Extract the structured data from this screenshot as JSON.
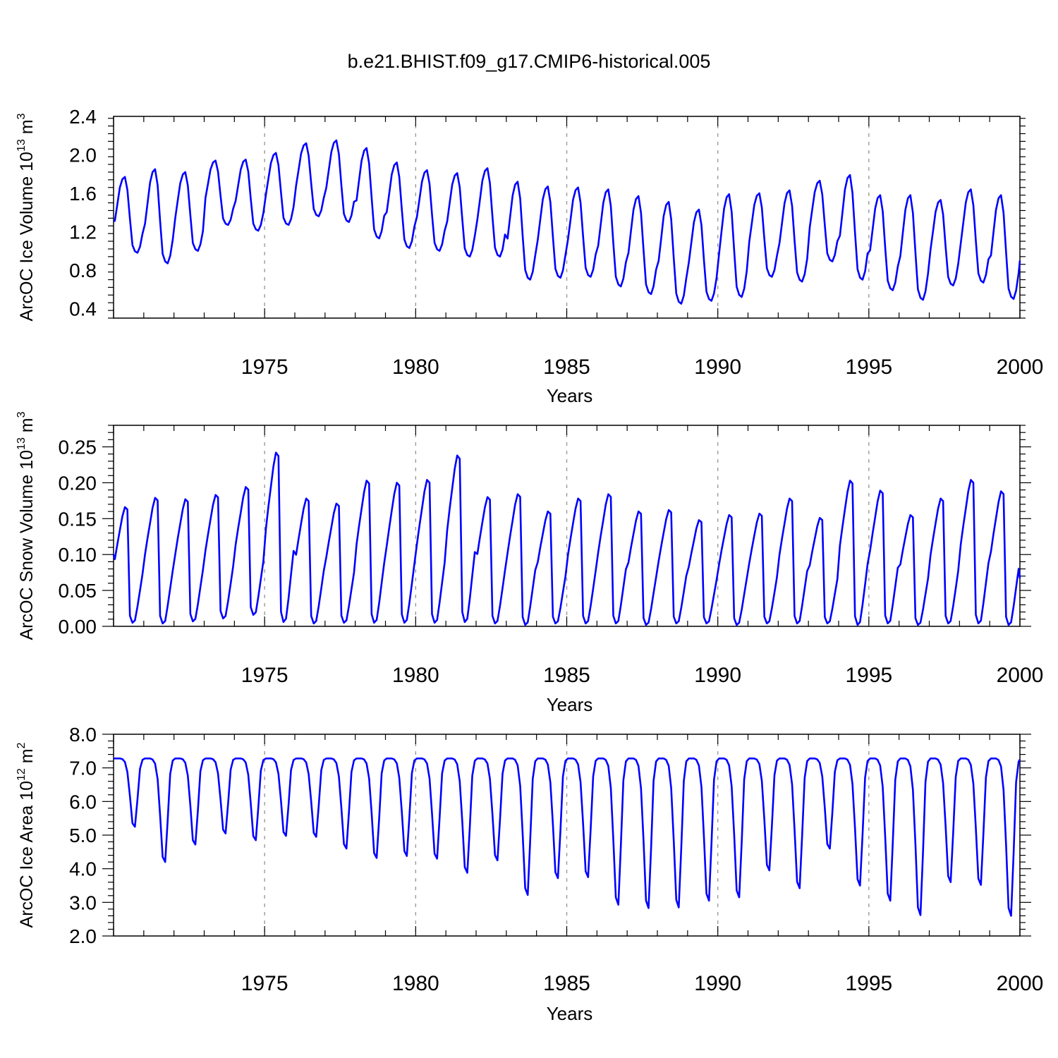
{
  "title": "b.e21.BHIST.f09_g17.CMIP6-historical.005",
  "line_color": "#0000ff",
  "chart_data": [
    {
      "type": "line",
      "ylabel": "ArcOC Ice Volume 10",
      "ylabel_exp": "13",
      "ylabel_unit": "m",
      "ylabel_unit_exp": "3",
      "xlabel": "Years",
      "xlim": [
        1970.0,
        2000.0
      ],
      "ylim": [
        0.3,
        2.4
      ],
      "yticks": [
        "0.4",
        "0.8",
        "1.2",
        "1.6",
        "2.0",
        "2.4"
      ],
      "xticks": [
        "1975",
        "1980",
        "1985",
        "1990",
        "1995",
        "2000"
      ],
      "xgrid": [
        1975,
        1980,
        1985,
        1990,
        1995
      ],
      "annual": [
        {
          "min": 0.98,
          "max": 1.77
        },
        {
          "min": 0.87,
          "max": 1.85
        },
        {
          "min": 1.0,
          "max": 1.82
        },
        {
          "min": 1.27,
          "max": 1.94
        },
        {
          "min": 1.21,
          "max": 1.95
        },
        {
          "min": 1.27,
          "max": 2.02
        },
        {
          "min": 1.36,
          "max": 2.12
        },
        {
          "min": 1.3,
          "max": 2.15
        },
        {
          "min": 1.13,
          "max": 2.07
        },
        {
          "min": 1.03,
          "max": 1.92
        },
        {
          "min": 1.0,
          "max": 1.84
        },
        {
          "min": 0.94,
          "max": 1.81
        },
        {
          "min": 0.94,
          "max": 1.86
        },
        {
          "min": 0.7,
          "max": 1.72
        },
        {
          "min": 0.72,
          "max": 1.67
        },
        {
          "min": 0.73,
          "max": 1.66
        },
        {
          "min": 0.63,
          "max": 1.64
        },
        {
          "min": 0.55,
          "max": 1.57
        },
        {
          "min": 0.45,
          "max": 1.51
        },
        {
          "min": 0.48,
          "max": 1.43
        },
        {
          "min": 0.52,
          "max": 1.59
        },
        {
          "min": 0.73,
          "max": 1.6
        },
        {
          "min": 0.68,
          "max": 1.63
        },
        {
          "min": 0.89,
          "max": 1.73
        },
        {
          "min": 0.7,
          "max": 1.79
        },
        {
          "min": 0.59,
          "max": 1.58
        },
        {
          "min": 0.49,
          "max": 1.58
        },
        {
          "min": 0.64,
          "max": 1.53
        },
        {
          "min": 0.67,
          "max": 1.64
        },
        {
          "min": 0.5,
          "max": 1.58
        }
      ],
      "start_value": 1.31,
      "end_value": 0.9
    },
    {
      "type": "line",
      "ylabel": "ArcOC Snow Volume 10",
      "ylabel_exp": "13",
      "ylabel_unit": "m",
      "ylabel_unit_exp": "3",
      "xlabel": "Years",
      "xlim": [
        1970.0,
        2000.0
      ],
      "ylim": [
        0.0,
        0.28
      ],
      "yticks": [
        "0.00",
        "0.05",
        "0.10",
        "0.15",
        "0.20",
        "0.25"
      ],
      "xticks": [
        "1975",
        "1980",
        "1985",
        "1990",
        "1995",
        "2000"
      ],
      "xgrid": [
        1975,
        1980,
        1985,
        1990,
        1995
      ],
      "annual": [
        {
          "min": 0.005,
          "max": 0.166
        },
        {
          "min": 0.004,
          "max": 0.179
        },
        {
          "min": 0.007,
          "max": 0.177
        },
        {
          "min": 0.011,
          "max": 0.183
        },
        {
          "min": 0.016,
          "max": 0.194
        },
        {
          "min": 0.006,
          "max": 0.242
        },
        {
          "min": 0.004,
          "max": 0.178
        },
        {
          "min": 0.005,
          "max": 0.171
        },
        {
          "min": 0.005,
          "max": 0.203
        },
        {
          "min": 0.005,
          "max": 0.2
        },
        {
          "min": 0.005,
          "max": 0.204
        },
        {
          "min": 0.006,
          "max": 0.238
        },
        {
          "min": 0.004,
          "max": 0.18
        },
        {
          "min": 0.002,
          "max": 0.184
        },
        {
          "min": 0.004,
          "max": 0.16
        },
        {
          "min": 0.004,
          "max": 0.178
        },
        {
          "min": 0.004,
          "max": 0.184
        },
        {
          "min": 0.002,
          "max": 0.16
        },
        {
          "min": 0.004,
          "max": 0.162
        },
        {
          "min": 0.004,
          "max": 0.148
        },
        {
          "min": 0.002,
          "max": 0.155
        },
        {
          "min": 0.004,
          "max": 0.157
        },
        {
          "min": 0.004,
          "max": 0.178
        },
        {
          "min": 0.004,
          "max": 0.151
        },
        {
          "min": 0.002,
          "max": 0.203
        },
        {
          "min": 0.004,
          "max": 0.189
        },
        {
          "min": 0.002,
          "max": 0.155
        },
        {
          "min": 0.004,
          "max": 0.178
        },
        {
          "min": 0.004,
          "max": 0.204
        },
        {
          "min": 0.002,
          "max": 0.188
        }
      ],
      "start_value": 0.1,
      "end_value": 0.067
    },
    {
      "type": "line",
      "ylabel": "ArcOC Ice Area 10",
      "ylabel_exp": "12",
      "ylabel_unit": "m",
      "ylabel_unit_exp": "2",
      "xlabel": "Years",
      "xlim": [
        1970.0,
        2000.0
      ],
      "ylim": [
        2.0,
        8.0
      ],
      "yticks": [
        "2.0",
        "3.0",
        "4.0",
        "5.0",
        "6.0",
        "7.0",
        "8.0"
      ],
      "xticks": [
        "1975",
        "1980",
        "1985",
        "1990",
        "1995",
        "2000"
      ],
      "xgrid": [
        1975,
        1980,
        1985,
        1990,
        1995
      ],
      "annual": [
        {
          "min": 5.25,
          "max": 7.28
        },
        {
          "min": 4.2,
          "max": 7.28
        },
        {
          "min": 4.72,
          "max": 7.28
        },
        {
          "min": 5.05,
          "max": 7.28
        },
        {
          "min": 4.85,
          "max": 7.28
        },
        {
          "min": 4.98,
          "max": 7.28
        },
        {
          "min": 4.95,
          "max": 7.28
        },
        {
          "min": 4.6,
          "max": 7.28
        },
        {
          "min": 4.32,
          "max": 7.28
        },
        {
          "min": 4.38,
          "max": 7.28
        },
        {
          "min": 4.3,
          "max": 7.28
        },
        {
          "min": 3.88,
          "max": 7.28
        },
        {
          "min": 4.25,
          "max": 7.28
        },
        {
          "min": 3.22,
          "max": 7.28
        },
        {
          "min": 3.72,
          "max": 7.28
        },
        {
          "min": 3.75,
          "max": 7.28
        },
        {
          "min": 2.93,
          "max": 7.28
        },
        {
          "min": 2.83,
          "max": 7.28
        },
        {
          "min": 2.85,
          "max": 7.28
        },
        {
          "min": 3.05,
          "max": 7.28
        },
        {
          "min": 3.15,
          "max": 7.28
        },
        {
          "min": 3.95,
          "max": 7.28
        },
        {
          "min": 3.42,
          "max": 7.28
        },
        {
          "min": 4.6,
          "max": 7.28
        },
        {
          "min": 3.5,
          "max": 7.28
        },
        {
          "min": 3.05,
          "max": 7.28
        },
        {
          "min": 2.62,
          "max": 7.28
        },
        {
          "min": 3.6,
          "max": 7.28
        },
        {
          "min": 3.52,
          "max": 7.28
        },
        {
          "min": 2.6,
          "max": 7.28
        }
      ],
      "start_value": 7.28,
      "end_value": 7.25
    }
  ]
}
